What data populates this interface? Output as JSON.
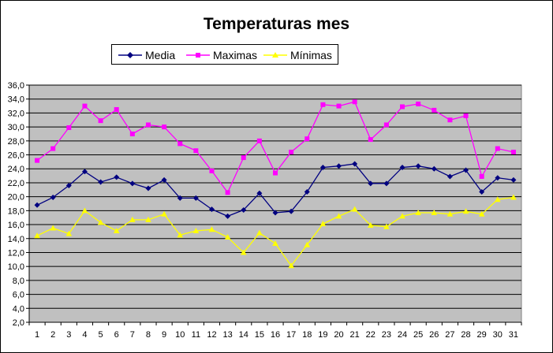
{
  "chart_data": {
    "type": "line",
    "title": "Temperaturas mes",
    "xlabel": "",
    "ylabel": "",
    "x": [
      1,
      2,
      3,
      4,
      5,
      6,
      7,
      8,
      9,
      10,
      11,
      12,
      13,
      14,
      15,
      16,
      17,
      18,
      19,
      20,
      21,
      22,
      23,
      24,
      25,
      26,
      27,
      28,
      29,
      30,
      31
    ],
    "ylim": [
      2.0,
      36.0
    ],
    "ytick_labels": [
      "2,0",
      "4,0",
      "6,0",
      "8,0",
      "10,0",
      "12,0",
      "14,0",
      "16,0",
      "18,0",
      "20,0",
      "22,0",
      "24,0",
      "26,0",
      "28,0",
      "30,0",
      "32,0",
      "34,0",
      "36,0"
    ],
    "grid": true,
    "plot_background": "#C0C0C0",
    "legend_position": "top",
    "series": [
      {
        "name": "Media",
        "color": "#000080",
        "marker": "diamond",
        "values": [
          18.8,
          19.9,
          21.6,
          23.6,
          22.1,
          22.8,
          21.9,
          21.2,
          22.4,
          19.8,
          19.8,
          18.2,
          17.2,
          18.1,
          20.5,
          17.7,
          17.9,
          20.7,
          24.2,
          24.4,
          24.7,
          21.9,
          21.9,
          24.2,
          24.4,
          24.0,
          22.9,
          23.8,
          20.7,
          22.7,
          22.4
        ]
      },
      {
        "name": "Maximas",
        "color": "#FF00FF",
        "marker": "square",
        "values": [
          25.2,
          26.9,
          29.9,
          33.0,
          30.9,
          32.5,
          29.0,
          30.3,
          30.0,
          27.6,
          26.6,
          23.7,
          20.6,
          25.6,
          28.0,
          23.4,
          26.4,
          28.3,
          33.2,
          33.0,
          33.6,
          28.2,
          30.3,
          32.9,
          33.3,
          32.4,
          31.0,
          31.6,
          22.9,
          26.9,
          26.4
        ]
      },
      {
        "name": "Mínimas",
        "color": "#FFFF00",
        "marker": "triangle",
        "values": [
          14.4,
          15.5,
          14.7,
          18.0,
          16.3,
          15.1,
          16.7,
          16.7,
          17.5,
          14.5,
          15.1,
          15.3,
          14.2,
          12.0,
          14.8,
          13.3,
          10.1,
          13.1,
          16.1,
          17.2,
          18.2,
          15.9,
          15.7,
          17.2,
          17.7,
          17.7,
          17.5,
          17.9,
          17.5,
          19.6,
          19.9
        ]
      }
    ]
  }
}
